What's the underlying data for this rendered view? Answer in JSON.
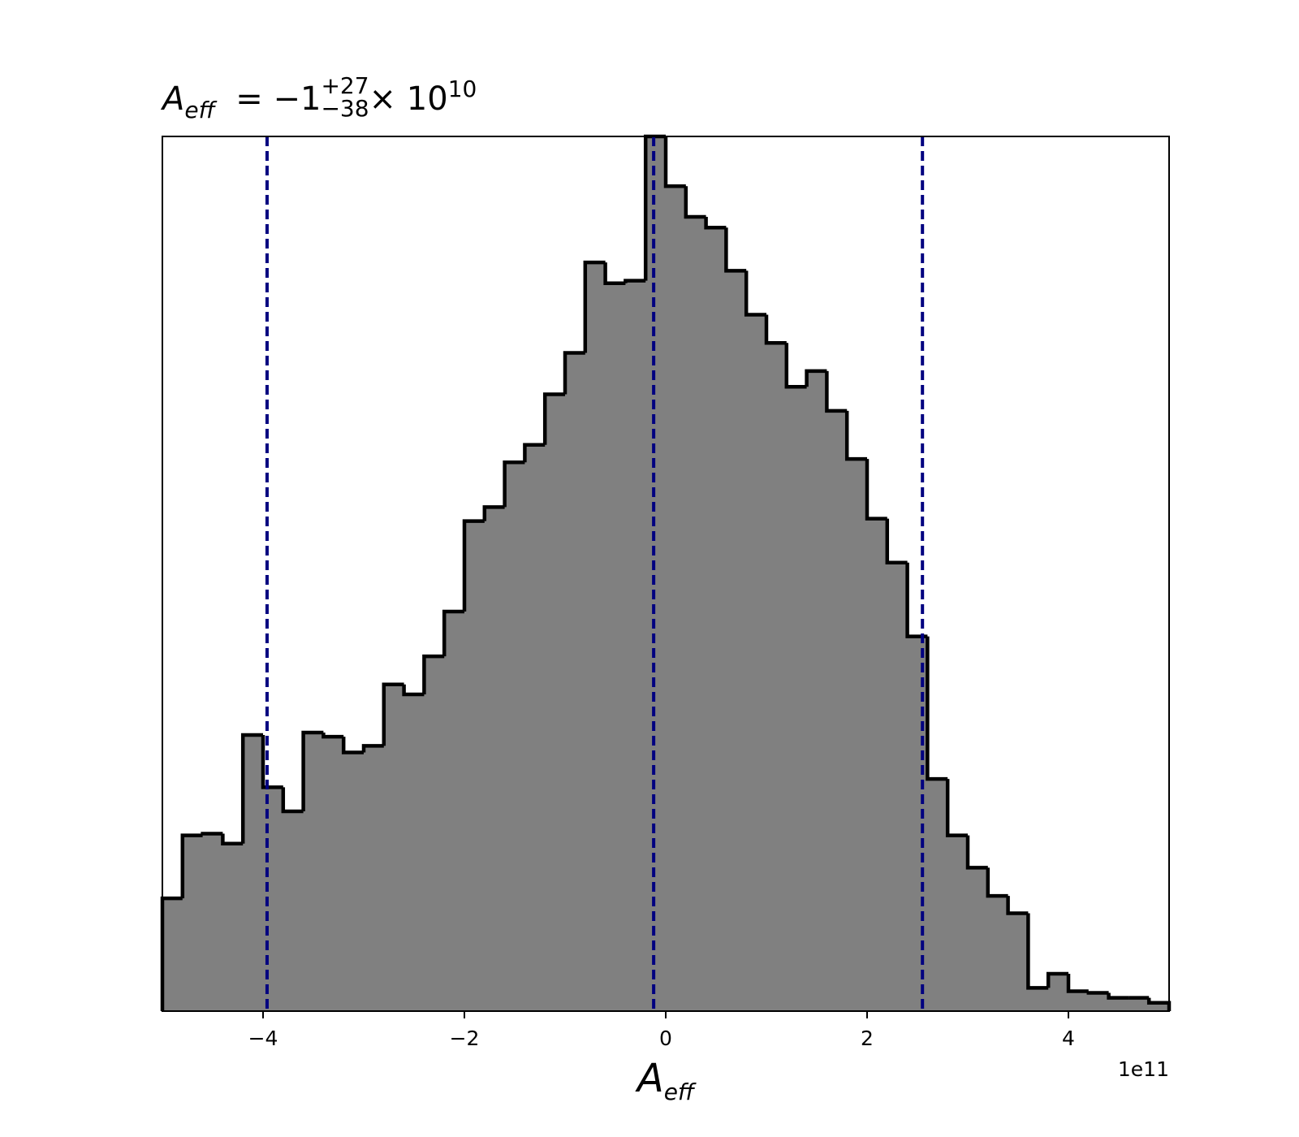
{
  "chart_data": {
    "type": "histogram",
    "title": {
      "symbol": "A",
      "symbol_sub": "eff",
      "relation": "= −1",
      "upper": "+27",
      "lower": "−38",
      "scale": "× 10",
      "exponent": "10"
    },
    "x_label": {
      "symbol": "A",
      "sub": "eff"
    },
    "x_offset_text": "1e11",
    "bins": [
      -5,
      -4.8,
      -4.6,
      -4.4,
      -4.2,
      -4,
      -3.8,
      -3.6,
      -3.4,
      -3.2,
      -3,
      -2.8,
      -2.6,
      -2.4,
      -2.2,
      -2,
      -1.8,
      -1.6,
      -1.4,
      -1.2,
      -1,
      -0.8,
      -0.6,
      -0.4,
      -0.2,
      0,
      0.2,
      0.4,
      0.6,
      0.8,
      1,
      1.2,
      1.4,
      1.6,
      1.8,
      2,
      2.2,
      2.4,
      2.6,
      2.8,
      3,
      3.2,
      3.4,
      3.6,
      3.8,
      4,
      4.2,
      4.4,
      4.6,
      4.8,
      5
    ],
    "values": [
      136,
      212,
      214,
      202,
      333,
      270,
      241,
      336,
      331,
      312,
      320,
      394,
      382,
      428,
      482,
      591,
      608,
      662,
      683,
      744,
      794,
      903,
      878,
      881,
      1055,
      995,
      958,
      945,
      893,
      840,
      806,
      753,
      772,
      724,
      666,
      594,
      541,
      452,
      280,
      212,
      173,
      139,
      118,
      28,
      45,
      24,
      22,
      16,
      16,
      10
    ],
    "color": "#808080",
    "edge_color": "#000000",
    "quantiles": [
      -3.96,
      -0.12,
      2.55
    ],
    "quantile_color": "#000080",
    "xlim": [
      -5,
      5
    ],
    "ylim": [
      0,
      1055
    ],
    "xticks": [
      {
        "value": -4,
        "label": "−4"
      },
      {
        "value": -2,
        "label": "−2"
      },
      0,
      2,
      4
    ]
  }
}
